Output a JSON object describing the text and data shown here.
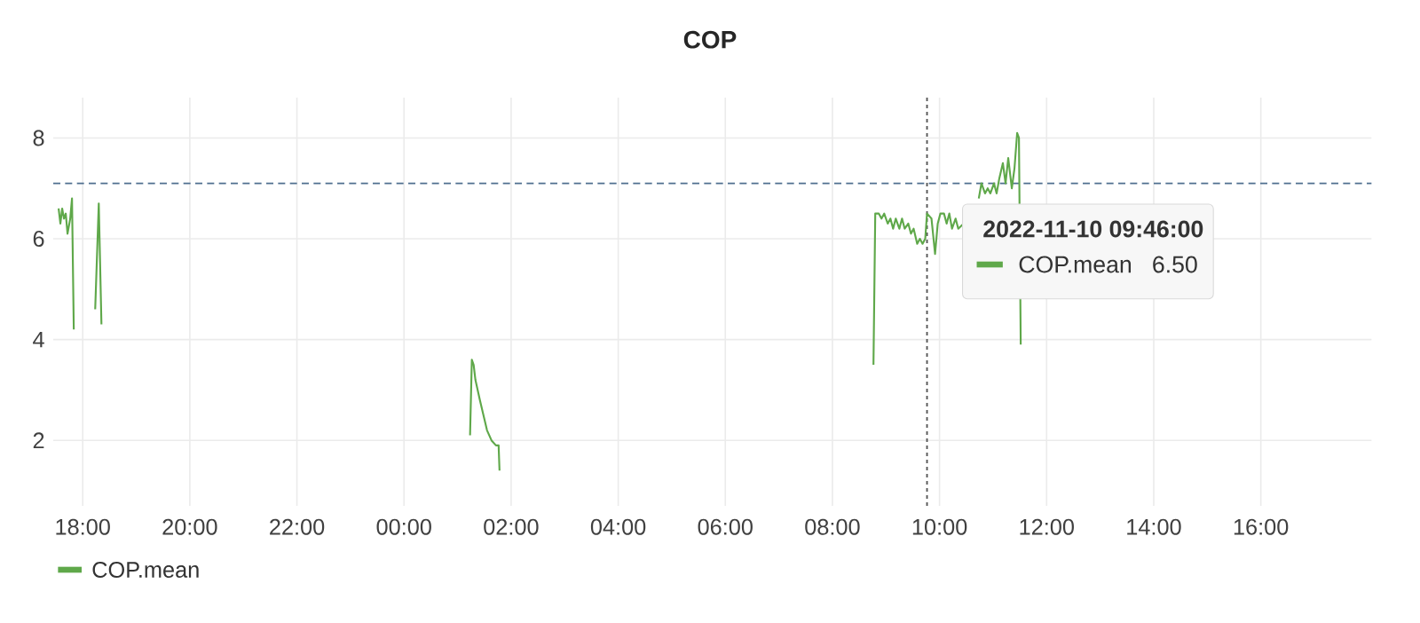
{
  "chart_data": {
    "type": "line",
    "title": "COP",
    "xlim": [
      "2022-11-09T17:27",
      "2022-11-10T18:04"
    ],
    "xticks": [
      {
        "value": "2022-11-09T18:00",
        "label": "18:00"
      },
      {
        "value": "2022-11-09T20:00",
        "label": "20:00"
      },
      {
        "value": "2022-11-09T22:00",
        "label": "22:00"
      },
      {
        "value": "2022-11-10T00:00",
        "label": "00:00"
      },
      {
        "value": "2022-11-10T02:00",
        "label": "02:00"
      },
      {
        "value": "2022-11-10T04:00",
        "label": "04:00"
      },
      {
        "value": "2022-11-10T06:00",
        "label": "06:00"
      },
      {
        "value": "2022-11-10T08:00",
        "label": "08:00"
      },
      {
        "value": "2022-11-10T10:00",
        "label": "10:00"
      },
      {
        "value": "2022-11-10T12:00",
        "label": "12:00"
      },
      {
        "value": "2022-11-10T14:00",
        "label": "14:00"
      },
      {
        "value": "2022-11-10T16:00",
        "label": "16:00"
      }
    ],
    "ylim": [
      0.7,
      8.8
    ],
    "yticks": [
      2,
      4,
      6,
      8
    ],
    "grid": true,
    "legend": "bottom left",
    "marker": "none",
    "line_style": "solid",
    "ref_lines": [
      {
        "axis": "y",
        "value": 7.1,
        "color": "#4f6f8f",
        "line_style": "dashed"
      },
      {
        "axis": "x",
        "value": "2022-11-10T09:46",
        "color": "#555555",
        "line_style": "dotted"
      }
    ],
    "annotations": [
      "2022-11-10 09:46:00",
      "COP.mean",
      "6.50"
    ],
    "series": [
      {
        "name": "COP.mean",
        "color": "#5fa84a",
        "x": [
          "2022-11-09T17:33",
          "2022-11-09T17:35",
          "2022-11-09T17:37",
          "2022-11-09T17:39",
          "2022-11-09T17:41",
          "2022-11-09T17:43",
          "2022-11-09T17:46",
          "2022-11-09T17:48",
          "2022-11-09T17:50",
          "2022-11-09T18:00",
          "2022-11-09T18:14",
          "2022-11-09T18:18",
          "2022-11-09T18:21",
          "2022-11-09T20:00",
          "2022-11-10T01:14",
          "2022-11-10T01:16",
          "2022-11-10T01:18",
          "2022-11-10T01:20",
          "2022-11-10T01:25",
          "2022-11-10T01:29",
          "2022-11-10T01:33",
          "2022-11-10T01:38",
          "2022-11-10T01:43",
          "2022-11-10T01:46",
          "2022-11-10T01:47",
          "2022-11-10T04:00",
          "2022-11-10T08:46",
          "2022-11-10T08:48",
          "2022-11-10T08:52",
          "2022-11-10T08:55",
          "2022-11-10T08:58",
          "2022-11-10T09:02",
          "2022-11-10T09:05",
          "2022-11-10T09:08",
          "2022-11-10T09:11",
          "2022-11-10T09:15",
          "2022-11-10T09:18",
          "2022-11-10T09:21",
          "2022-11-10T09:25",
          "2022-11-10T09:28",
          "2022-11-10T09:31",
          "2022-11-10T09:35",
          "2022-11-10T09:38",
          "2022-11-10T09:41",
          "2022-11-10T09:44",
          "2022-11-10T09:46",
          "2022-11-10T09:51",
          "2022-11-10T09:55",
          "2022-11-10T09:58",
          "2022-11-10T10:01",
          "2022-11-10T10:05",
          "2022-11-10T10:08",
          "2022-11-10T10:11",
          "2022-11-10T10:14",
          "2022-11-10T10:18",
          "2022-11-10T10:21",
          "2022-11-10T10:27",
          "2022-11-10T10:33",
          "2022-11-10T10:39",
          "2022-11-10T10:44",
          "2022-11-10T10:47",
          "2022-11-10T10:51",
          "2022-11-10T10:54",
          "2022-11-10T10:57",
          "2022-11-10T11:01",
          "2022-11-10T11:04",
          "2022-11-10T11:07",
          "2022-11-10T11:11",
          "2022-11-10T11:14",
          "2022-11-10T11:17",
          "2022-11-10T11:21",
          "2022-11-10T11:24",
          "2022-11-10T11:27",
          "2022-11-10T11:29",
          "2022-11-10T11:31"
        ],
        "values": [
          6.6,
          6.3,
          6.6,
          6.4,
          6.5,
          6.1,
          6.4,
          6.8,
          4.2,
          null,
          4.6,
          6.7,
          4.3,
          null,
          2.1,
          3.6,
          3.5,
          3.2,
          2.8,
          2.5,
          2.2,
          2.0,
          1.9,
          1.9,
          1.4,
          null,
          3.5,
          6.5,
          6.5,
          6.4,
          6.5,
          6.3,
          6.4,
          6.2,
          6.4,
          6.2,
          6.4,
          6.2,
          6.3,
          6.1,
          6.2,
          5.9,
          6.0,
          5.9,
          6.0,
          6.5,
          6.4,
          5.7,
          6.3,
          6.5,
          6.5,
          6.3,
          6.5,
          6.2,
          6.4,
          6.2,
          6.3,
          null,
          null,
          6.8,
          7.1,
          6.9,
          7.0,
          6.9,
          7.1,
          6.9,
          7.2,
          7.5,
          7.1,
          7.6,
          7.0,
          7.4,
          8.1,
          8.0,
          3.9
        ]
      }
    ]
  }
}
